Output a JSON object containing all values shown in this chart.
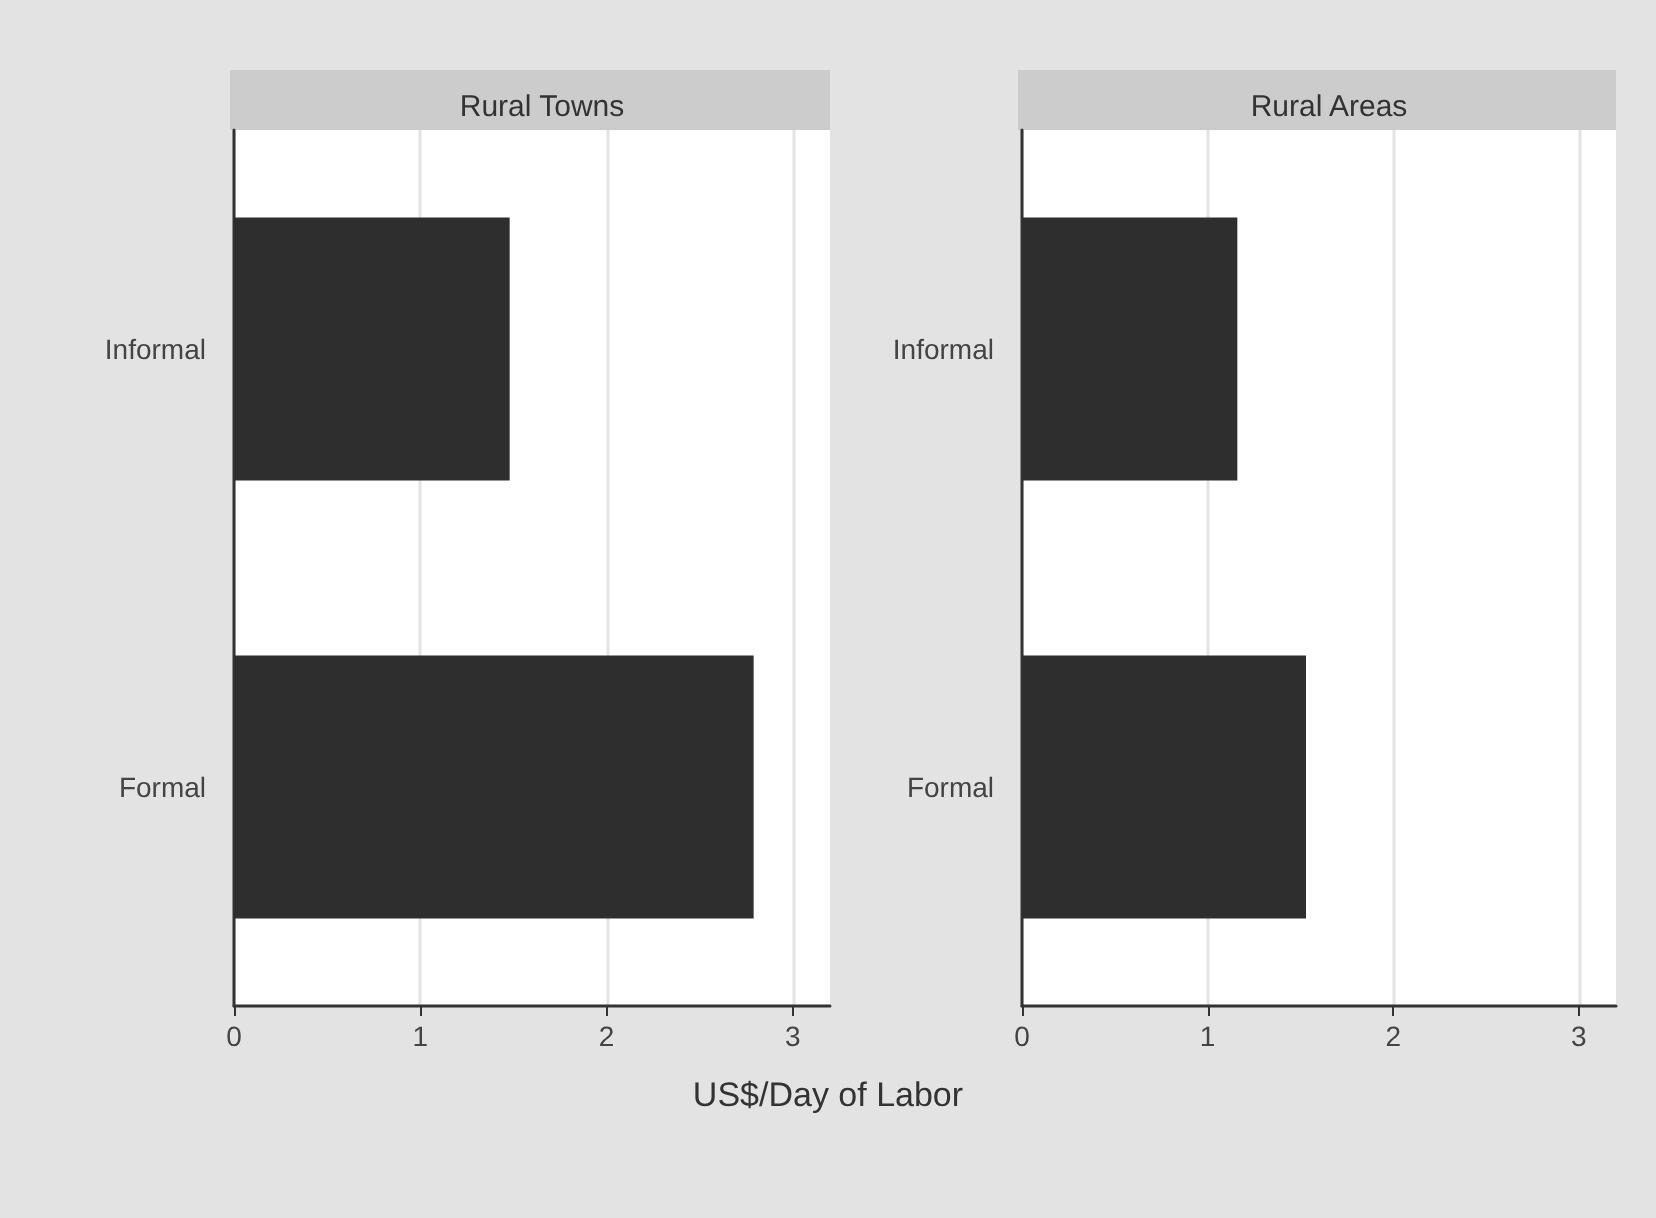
{
  "chart_data": [
    {
      "type": "bar",
      "orientation": "horizontal",
      "title": "Rural Towns",
      "xlabel": "US$/Day of Labor",
      "categories": [
        "Informal",
        "Formal"
      ],
      "values": [
        1.48,
        2.79
      ],
      "color": "#2e2e2e",
      "xlim": [
        0,
        3.2
      ],
      "xticks": [
        0,
        1,
        2,
        3
      ],
      "grid": "x"
    },
    {
      "type": "bar",
      "orientation": "horizontal",
      "title": "Rural Areas",
      "categories": [
        "Informal",
        "Formal"
      ],
      "values": [
        1.16,
        1.53
      ],
      "color": "#2e2e2e",
      "xlim": [
        0,
        3.2
      ],
      "xticks": [
        0,
        1,
        2,
        3
      ],
      "grid": "x"
    }
  ]
}
